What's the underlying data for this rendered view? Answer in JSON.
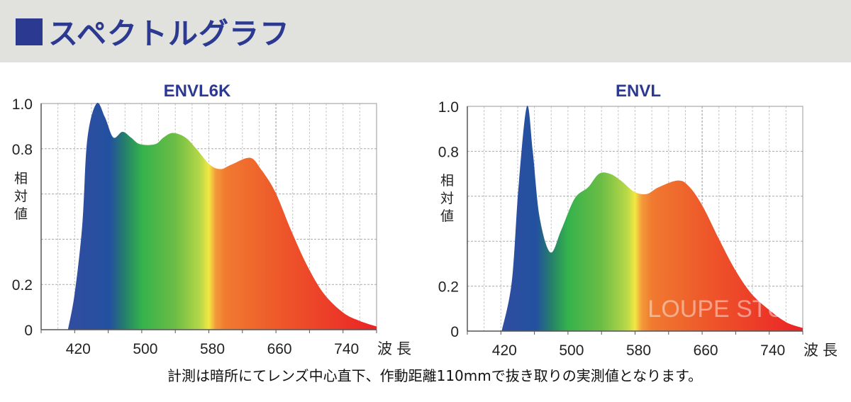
{
  "header": {
    "title": "スペクトルグラフ",
    "accent_color": "#2b3990"
  },
  "chart_data": [
    {
      "type": "area",
      "title": "ENVL6K",
      "xlabel": "波長",
      "ylabel": "相対値",
      "xlim": [
        380,
        780
      ],
      "ylim": [
        0,
        1.0
      ],
      "xticks": [
        420,
        500,
        580,
        660,
        740
      ],
      "yticks": [
        "0",
        "0.2",
        "0.8",
        "1.0"
      ],
      "grid": true,
      "x": [
        412,
        420,
        429,
        435,
        446,
        456,
        466,
        477,
        487,
        498,
        516,
        526,
        537,
        552,
        565,
        581,
        594,
        607,
        629,
        642,
        659,
        678,
        697,
        717,
        740,
        759,
        780
      ],
      "y": [
        0,
        0.16,
        0.46,
        0.84,
        1.0,
        0.94,
        0.85,
        0.875,
        0.85,
        0.82,
        0.82,
        0.85,
        0.87,
        0.85,
        0.8,
        0.73,
        0.71,
        0.73,
        0.76,
        0.71,
        0.61,
        0.44,
        0.285,
        0.16,
        0.076,
        0.04,
        0.014
      ]
    },
    {
      "type": "area",
      "title": "ENVL",
      "xlabel": "波長",
      "ylabel": "相対値",
      "xlim": [
        380,
        780
      ],
      "ylim": [
        0,
        1.0
      ],
      "xticks": [
        420,
        500,
        580,
        660,
        740
      ],
      "yticks": [
        "0",
        "0.2",
        "0.8",
        "1.0"
      ],
      "grid": true,
      "watermark": "LOUPE STUDIO",
      "x": [
        421,
        433,
        441,
        451,
        458,
        466,
        479,
        492,
        508,
        524,
        537,
        550,
        563,
        579,
        594,
        608,
        631,
        644,
        660,
        680,
        699,
        718,
        738,
        760,
        780
      ],
      "y": [
        0,
        0.22,
        0.64,
        1.0,
        0.8,
        0.51,
        0.35,
        0.45,
        0.59,
        0.64,
        0.7,
        0.7,
        0.67,
        0.62,
        0.61,
        0.64,
        0.67,
        0.645,
        0.56,
        0.41,
        0.275,
        0.17,
        0.1,
        0.04,
        0.014
      ]
    }
  ],
  "footer": {
    "note": "計測は暗所にてレンズ中心直下、作動距離110mmで抜き取りの実測値となります。"
  }
}
